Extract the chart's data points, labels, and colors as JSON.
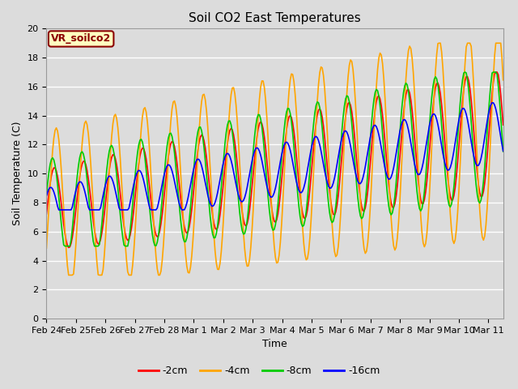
{
  "title": "Soil CO2 East Temperatures",
  "xlabel": "Time",
  "ylabel": "Soil Temperature (C)",
  "ylim": [
    0,
    20
  ],
  "xlim": [
    0,
    15.5
  ],
  "annotation": "VR_soilco2",
  "annotation_color": "#8B0000",
  "annotation_bg": "#FFFFC0",
  "plot_bg_color": "#DCDCDC",
  "fig_bg_color": "#DCDCDC",
  "grid_color": "#FFFFFF",
  "colors": {
    "-2cm": "#FF0000",
    "-4cm": "#FFA500",
    "-8cm": "#00CC00",
    "-16cm": "#0000FF"
  },
  "line_width": 1.2,
  "xtick_labels": [
    "Feb 24",
    "Feb 25",
    "Feb 26",
    "Feb 27",
    "Feb 28",
    "Mar 1",
    "Mar 2",
    "Mar 3",
    "Mar 4",
    "Mar 5",
    "Mar 6",
    "Mar 7",
    "Mar 8",
    "Mar 9",
    "Mar 10",
    "Mar 11"
  ],
  "yticks": [
    0,
    2,
    4,
    6,
    8,
    10,
    12,
    14,
    16,
    18,
    20
  ],
  "figsize": [
    6.4,
    4.8
  ],
  "dpi": 100,
  "title_fontsize": 11,
  "label_fontsize": 9,
  "tick_fontsize": 8,
  "legend_fontsize": 9,
  "n_days": 15.5,
  "n_pts": 372,
  "base_start": 7.5,
  "base_slope": 0.35,
  "amp_4cm_start": 5.5,
  "amp_4cm_slope": 0.12,
  "amp_2cm_start": 2.8,
  "amp_2cm_slope": 0.1,
  "amp_8cm_start": 3.5,
  "amp_8cm_slope": 0.08,
  "amp_16cm_start": 1.5,
  "amp_16cm_slope": 0.04,
  "phase_4cm": -0.5,
  "phase_2cm": -0.1,
  "phase_8cm": 0.3,
  "phase_16cm": 0.7
}
